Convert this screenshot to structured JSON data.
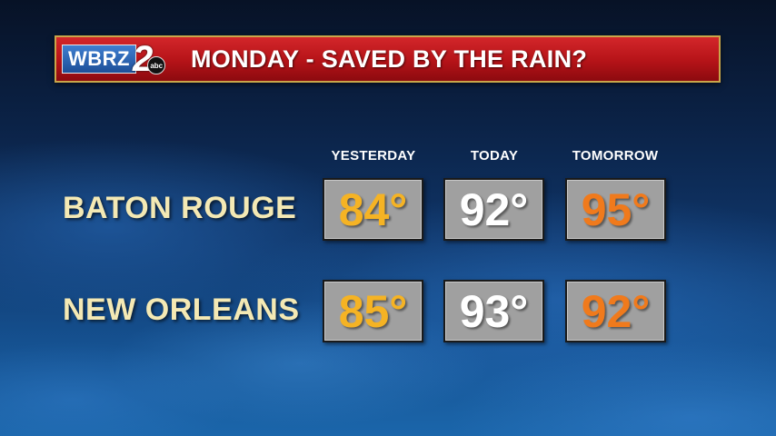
{
  "banner": {
    "logo_text": "WBRZ",
    "logo_number": "2",
    "logo_network": "abc",
    "title": "MONDAY - SAVED BY THE RAIN?"
  },
  "columns": [
    "YESTERDAY",
    "TODAY",
    "TOMORROW"
  ],
  "rows": [
    {
      "city": "BATON ROUGE",
      "temps": [
        "84°",
        "92°",
        "95°"
      ]
    },
    {
      "city": "NEW ORLEANS",
      "temps": [
        "85°",
        "93°",
        "92°"
      ]
    }
  ],
  "colors": {
    "yesterday": "#f5b324",
    "today": "#ffffff",
    "tomorrow": "#f07a1c",
    "banner_red": "#c11c21",
    "city_label": "#f4e9b4"
  }
}
